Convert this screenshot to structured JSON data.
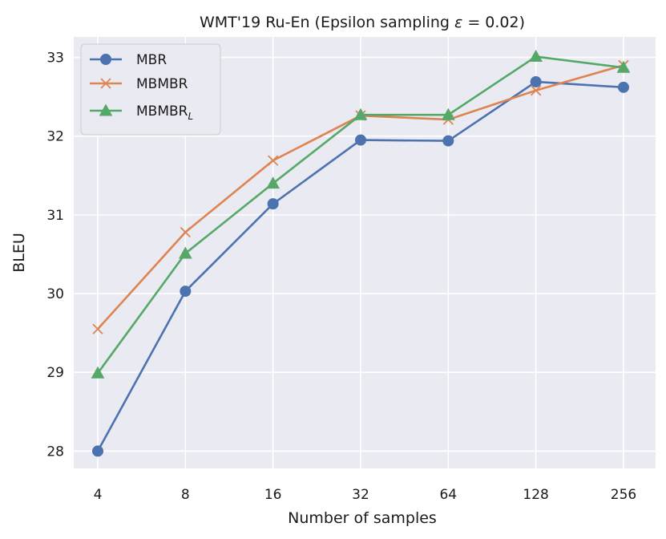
{
  "chart_data": {
    "type": "line",
    "title_main": "WMT'19 Ru-En (Epsilon sampling ",
    "title_symbol": "ε",
    "title_tail": " = 0.02)",
    "xlabel": "Number of samples",
    "ylabel": "BLEU",
    "categories": [
      "4",
      "8",
      "16",
      "32",
      "64",
      "128",
      "256"
    ],
    "ylim": [
      27.78,
      33.26
    ],
    "yticks": [
      28,
      29,
      30,
      31,
      32,
      33
    ],
    "grid": true,
    "legend_position": "top-left",
    "series": [
      {
        "name": "MBR",
        "name_sub": "",
        "marker": "circle",
        "color": "#4c72b0",
        "values": [
          28.0,
          30.03,
          31.14,
          31.95,
          31.94,
          32.69,
          32.62
        ]
      },
      {
        "name": "MBMBR",
        "name_sub": "",
        "marker": "x",
        "color": "#dd8452",
        "values": [
          29.55,
          30.78,
          31.69,
          32.26,
          32.21,
          32.58,
          32.9
        ]
      },
      {
        "name": "MBMBR",
        "name_sub": "L",
        "marker": "triangle",
        "color": "#55a868",
        "values": [
          28.99,
          30.51,
          31.4,
          32.27,
          32.27,
          33.01,
          32.87
        ]
      }
    ],
    "colors": {
      "plot_background": "#eaeaf2",
      "grid": "#ffffff"
    }
  }
}
